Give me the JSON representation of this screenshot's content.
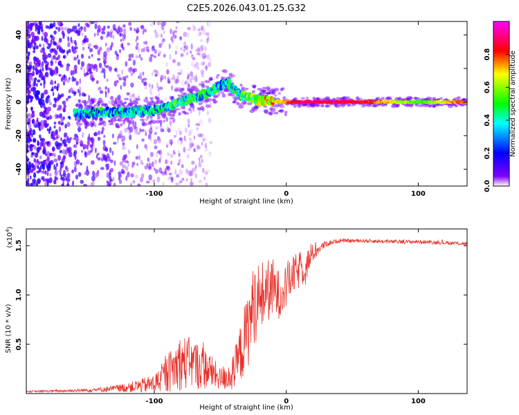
{
  "page_title": "C2E5.2026.043.01.25.G32",
  "chart_data": [
    {
      "type": "heatmap",
      "title": "C2E5.2026.043.01.25.G32",
      "xlabel": "Height of straight line (km)",
      "ylabel": "Frequency (Hz)",
      "xlim": [
        -197,
        137
      ],
      "ylim": [
        -50,
        48
      ],
      "xticks": [
        -100,
        0,
        100
      ],
      "xtick_labels": [
        "-100",
        "0",
        "100"
      ],
      "yticks": [
        -40,
        -20,
        0,
        20,
        40
      ],
      "ytick_labels": [
        "-40",
        "-20",
        "0",
        "20",
        "40"
      ],
      "colorbar": {
        "label": "Normalized spectral amplitude",
        "range": [
          0,
          1
        ],
        "ticks": [
          0.0,
          0.2,
          0.4,
          0.6,
          0.8
        ],
        "tick_labels": [
          "0.0",
          "0.2",
          "0.4",
          "0.6",
          "0.8"
        ],
        "colors": [
          "#ffffff",
          "#8000ff",
          "#0000ff",
          "#00ffff",
          "#00ff00",
          "#ffff00",
          "#ff0000",
          "#ff00ff"
        ]
      },
      "ridge": [
        {
          "x": -160,
          "freq": -7,
          "amp": 0.3
        },
        {
          "x": -140,
          "freq": -6,
          "amp": 0.35
        },
        {
          "x": -120,
          "freq": -6,
          "amp": 0.35
        },
        {
          "x": -100,
          "freq": -5,
          "amp": 0.35
        },
        {
          "x": -80,
          "freq": 0,
          "amp": 0.45
        },
        {
          "x": -60,
          "freq": 5,
          "amp": 0.4
        },
        {
          "x": -45,
          "freq": 12,
          "amp": 0.35
        },
        {
          "x": -35,
          "freq": 4,
          "amp": 0.45
        },
        {
          "x": -20,
          "freq": 1,
          "amp": 0.6
        },
        {
          "x": 0,
          "freq": 0,
          "amp": 0.75
        },
        {
          "x": 10,
          "freq": 0,
          "amp": 0.9
        },
        {
          "x": 60,
          "freq": 0,
          "amp": 0.85
        },
        {
          "x": 100,
          "freq": 0,
          "amp": 0.5
        },
        {
          "x": 135,
          "freq": 0,
          "amp": 0.8
        }
      ]
    },
    {
      "type": "line",
      "xlabel": "Height of straight line (km)",
      "ylabel": "SNR (10 * v/v)",
      "multiplier_label": "(x10",
      "multiplier_exp": "4",
      "xlim": [
        -197,
        137
      ],
      "ylim": [
        0,
        1.67
      ],
      "xticks": [
        -100,
        0,
        100
      ],
      "xtick_labels": [
        "-100",
        "0",
        "100"
      ],
      "yticks": [
        0.5,
        1.0,
        1.5
      ],
      "ytick_labels": [
        "0.5",
        "1.0",
        "1.5"
      ],
      "color": "#e8302a",
      "series": [
        {
          "name": "SNR",
          "x": [
            -197,
            -160,
            -140,
            -120,
            -100,
            -90,
            -80,
            -70,
            -60,
            -50,
            -40,
            -30,
            -25,
            -20,
            -15,
            -10,
            -5,
            0,
            5,
            10,
            15,
            20,
            25,
            30,
            40,
            60,
            80,
            100,
            120,
            137
          ],
          "y": [
            0.02,
            0.03,
            0.04,
            0.06,
            0.1,
            0.2,
            0.32,
            0.3,
            0.25,
            0.15,
            0.2,
            0.6,
            0.9,
            0.95,
            1.05,
            1.05,
            1.0,
            1.1,
            1.2,
            1.25,
            1.3,
            1.42,
            1.47,
            1.52,
            1.55,
            1.55,
            1.54,
            1.54,
            1.53,
            1.52
          ],
          "noise": [
            0.005,
            0.01,
            0.015,
            0.03,
            0.06,
            0.12,
            0.18,
            0.16,
            0.13,
            0.07,
            0.12,
            0.25,
            0.25,
            0.25,
            0.2,
            0.2,
            0.15,
            0.15,
            0.12,
            0.12,
            0.1,
            0.06,
            0.03,
            0.02,
            0.012,
            0.012,
            0.012,
            0.012,
            0.012,
            0.012
          ]
        }
      ]
    }
  ]
}
